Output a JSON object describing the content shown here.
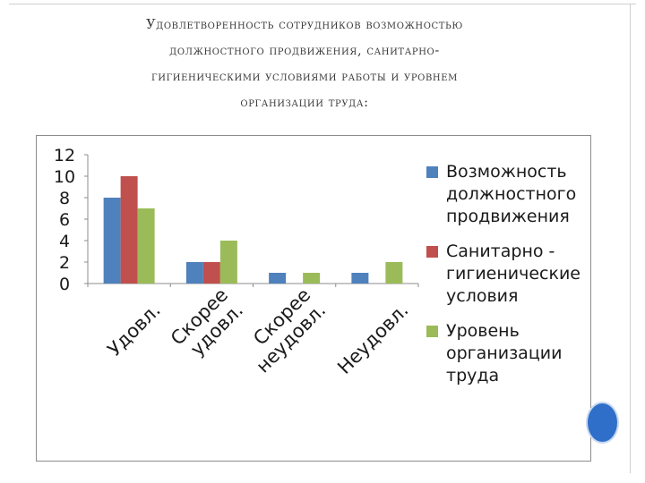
{
  "slide": {
    "title_lines": [
      "Удовлетворенность сотрудников возможностью",
      "должностного продвижения, санитарно-",
      "гигиеническими условиями работы и уровнем",
      "организации труда:"
    ]
  },
  "chart_data": {
    "type": "bar",
    "categories": [
      "Удовл.",
      "Скорее удовл.",
      "Скорее неудовл.",
      "Неудовл."
    ],
    "series": [
      {
        "name": "Возможность должностного продвижения",
        "values": [
          8,
          2,
          1,
          1
        ],
        "color": "#4f81bd"
      },
      {
        "name": "Санитарно-гигиенические условия",
        "values": [
          10,
          2,
          0,
          0
        ],
        "color": "#c0504d"
      },
      {
        "name": "Уровень организации труда",
        "values": [
          7,
          4,
          1,
          2
        ],
        "color": "#9bbb59"
      }
    ],
    "legend_lines": [
      [
        "Возможность",
        "должностного",
        "продвижения"
      ],
      [
        "Санитарно -",
        "гигиенические",
        "условия"
      ],
      [
        "Уровень",
        "организации",
        "труда"
      ]
    ],
    "category_lines": [
      [
        "Удовл."
      ],
      [
        "Скорее",
        "удовл."
      ],
      [
        "Скорее",
        "неудовл."
      ],
      [
        "Неудовл."
      ]
    ],
    "ylim": [
      0,
      12
    ],
    "yticks": [
      0,
      2,
      4,
      6,
      8,
      10,
      12
    ],
    "grid": false,
    "legend_position": "right"
  },
  "decor": {
    "accent_color": "#2f6fc9"
  }
}
